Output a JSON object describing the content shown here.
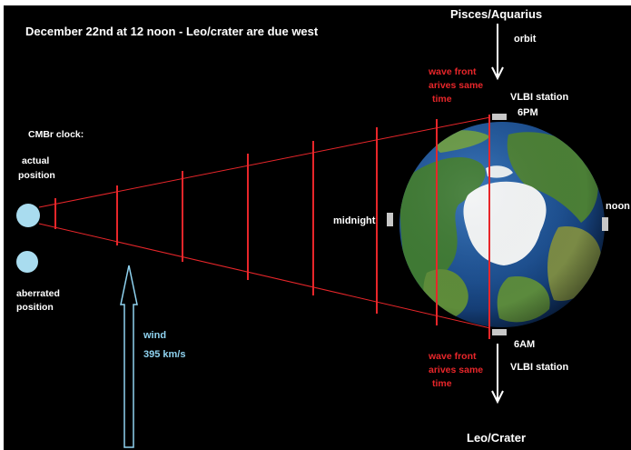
{
  "title": "December 22nd at 12 noon - Leo/crater are due west",
  "top_label": "Pisces/Aquarius",
  "orbit_label": "orbit",
  "bottom_label": "Leo/Crater",
  "clock": {
    "heading": "CMBr clock:",
    "actual_line1": "actual",
    "actual_line2": "position",
    "aberrated_line1": "aberrated",
    "aberrated_line2": "position"
  },
  "wavefront_top": {
    "line1": "wave front",
    "line2": "arives same",
    "line3": "time"
  },
  "wavefront_bottom": {
    "line1": "wave front",
    "line2": "arives same",
    "line3": "time"
  },
  "vlbi_top": "VLBI station",
  "vlbi_bottom": "VLBI station",
  "time_6pm": "6PM",
  "time_6am": "6AM",
  "midnight": "midnight",
  "noon": "noon",
  "wind": {
    "label": "wind",
    "speed": "395 km/s"
  },
  "colors": {
    "background": "#000000",
    "text": "#ffffff",
    "accent_red": "#e8262a",
    "wind_blue": "#8fd3f0",
    "marker": "#c8c8c8",
    "sphere": "#a9dcef"
  }
}
